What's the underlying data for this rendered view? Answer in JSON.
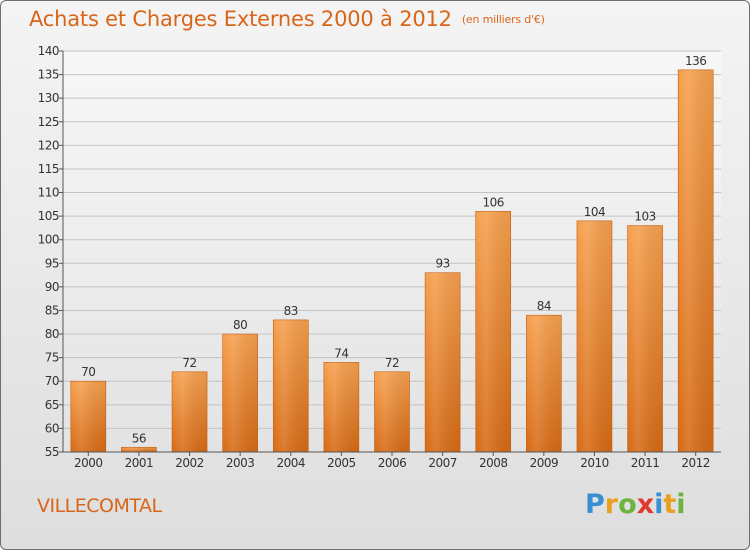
{
  "chart_data": {
    "type": "bar",
    "title": "Achats et Charges Externes 2000 à 2012",
    "unit_note": "(en milliers d'€)",
    "categories": [
      "2000",
      "2001",
      "2002",
      "2003",
      "2004",
      "2005",
      "2006",
      "2007",
      "2008",
      "2009",
      "2010",
      "2011",
      "2012"
    ],
    "values": [
      70,
      56,
      72,
      80,
      83,
      74,
      72,
      93,
      106,
      84,
      104,
      103,
      136
    ],
    "ylim": [
      55,
      140
    ],
    "yticks": [
      55,
      60,
      65,
      70,
      75,
      80,
      85,
      90,
      95,
      100,
      105,
      110,
      115,
      120,
      125,
      130,
      135,
      140
    ],
    "grid": true,
    "bar_color": "#f0923f"
  },
  "commune": "VILLECOMTAL",
  "logo": {
    "text": "Proxiti",
    "letters": [
      {
        "ch": "P",
        "color": "#3a8fd0"
      },
      {
        "ch": "r",
        "color": "#e8a020"
      },
      {
        "ch": "o",
        "color": "#6cb33f"
      },
      {
        "ch": "x",
        "color": "#e03a2e"
      },
      {
        "ch": "i",
        "color": "#3a8fd0"
      },
      {
        "ch": "t",
        "color": "#e8a020"
      },
      {
        "ch": "i",
        "color": "#6cb33f"
      }
    ]
  }
}
